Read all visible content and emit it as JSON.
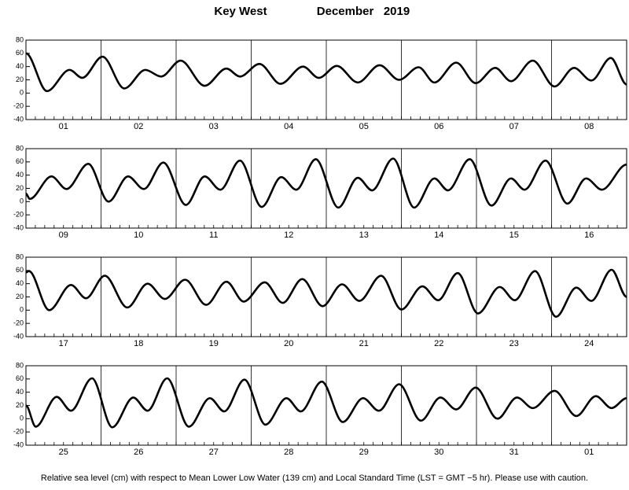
{
  "title": "Key West",
  "subtitle": "December   2019",
  "caption": "Relative sea level (cm) with respect to Mean Lower Low Water (139 cm) and Local Standard Time (LST = GMT −5 hr). Please use with caution.",
  "chart_data": [
    {
      "type": "line",
      "categories": [
        "01",
        "02",
        "03",
        "04",
        "05",
        "06",
        "07",
        "08"
      ],
      "xlim": [
        0,
        8
      ],
      "ylim": [
        -40,
        80
      ],
      "yticks": [
        -40,
        -20,
        0,
        20,
        40,
        60,
        80
      ],
      "color": "#000000",
      "x": [
        0,
        0.28,
        0.58,
        0.75,
        1.02,
        1.31,
        1.59,
        1.8,
        2.06,
        2.38,
        2.67,
        2.85,
        3.11,
        3.39,
        3.69,
        3.9,
        4.14,
        4.42,
        4.71,
        4.97,
        5.23,
        5.44,
        5.73,
        5.99,
        6.25,
        6.46,
        6.75,
        7.04,
        7.3,
        7.53,
        7.79,
        8
      ],
      "values": [
        60,
        3,
        35,
        23,
        55,
        7,
        35,
        25,
        49,
        11,
        37,
        25,
        44,
        14,
        40,
        23,
        41,
        16,
        42,
        20,
        39,
        16,
        46,
        15,
        38,
        18,
        49,
        10,
        38,
        19,
        53,
        13
      ]
    },
    {
      "type": "line",
      "categories": [
        "09",
        "10",
        "11",
        "12",
        "13",
        "14",
        "15",
        "16"
      ],
      "xlim": [
        0,
        8
      ],
      "ylim": [
        -40,
        80
      ],
      "yticks": [
        -40,
        -20,
        0,
        20,
        40,
        60,
        80
      ],
      "color": "#000000",
      "x": [
        0,
        0.05,
        0.34,
        0.54,
        0.83,
        1.1,
        1.36,
        1.57,
        1.83,
        2.13,
        2.38,
        2.59,
        2.85,
        3.14,
        3.4,
        3.6,
        3.86,
        4.16,
        4.42,
        4.61,
        4.89,
        5.17,
        5.44,
        5.62,
        5.91,
        6.2,
        6.46,
        6.64,
        6.92,
        7.21,
        7.46,
        7.67,
        8
      ],
      "values": [
        12,
        4,
        38,
        19,
        57,
        0,
        38,
        19,
        59,
        -5,
        38,
        18,
        62,
        -8,
        37,
        18,
        64,
        -9,
        36,
        17,
        65,
        -9,
        35,
        17,
        64,
        -6,
        35,
        18,
        62,
        -3,
        35,
        18,
        56
      ]
    },
    {
      "type": "line",
      "categories": [
        "17",
        "18",
        "19",
        "20",
        "21",
        "22",
        "23",
        "24"
      ],
      "xlim": [
        0,
        8
      ],
      "ylim": [
        -40,
        80
      ],
      "yticks": [
        -40,
        -20,
        0,
        20,
        40,
        60,
        80
      ],
      "color": "#000000",
      "x": [
        0,
        0.04,
        0.31,
        0.6,
        0.8,
        1.05,
        1.35,
        1.62,
        1.85,
        2.12,
        2.4,
        2.67,
        2.9,
        3.18,
        3.42,
        3.68,
        3.95,
        4.21,
        4.44,
        4.73,
        5,
        5.28,
        5.49,
        5.75,
        6.02,
        6.31,
        6.51,
        6.78,
        7.06,
        7.33,
        7.53,
        7.8,
        8
      ],
      "values": [
        57,
        59,
        0,
        38,
        18,
        52,
        4,
        40,
        17,
        46,
        8,
        43,
        13,
        42,
        11,
        47,
        6,
        39,
        14,
        52,
        1,
        36,
        15,
        56,
        -5,
        35,
        15,
        59,
        -10,
        34,
        14,
        61,
        20
      ]
    },
    {
      "type": "line",
      "categories": [
        "25",
        "26",
        "27",
        "28",
        "29",
        "30",
        "31",
        "01"
      ],
      "xlim": [
        0,
        8
      ],
      "ylim": [
        -40,
        80
      ],
      "yticks": [
        -40,
        -20,
        0,
        20,
        40,
        60,
        80
      ],
      "color": "#000000",
      "x": [
        0,
        0.13,
        0.41,
        0.6,
        0.88,
        1.15,
        1.43,
        1.62,
        1.88,
        2.17,
        2.45,
        2.64,
        2.91,
        3.19,
        3.47,
        3.66,
        3.94,
        4.22,
        4.49,
        4.7,
        4.97,
        5.26,
        5.52,
        5.73,
        5.99,
        6.28,
        6.54,
        6.75,
        7.04,
        7.33,
        7.59,
        7.8,
        8
      ],
      "values": [
        20,
        -12,
        33,
        12,
        61,
        -13,
        32,
        12,
        61,
        -12,
        31,
        11,
        59,
        -9,
        31,
        11,
        56,
        -5,
        31,
        12,
        52,
        -3,
        32,
        14,
        47,
        0,
        32,
        16,
        42,
        4,
        34,
        16,
        31
      ]
    }
  ]
}
